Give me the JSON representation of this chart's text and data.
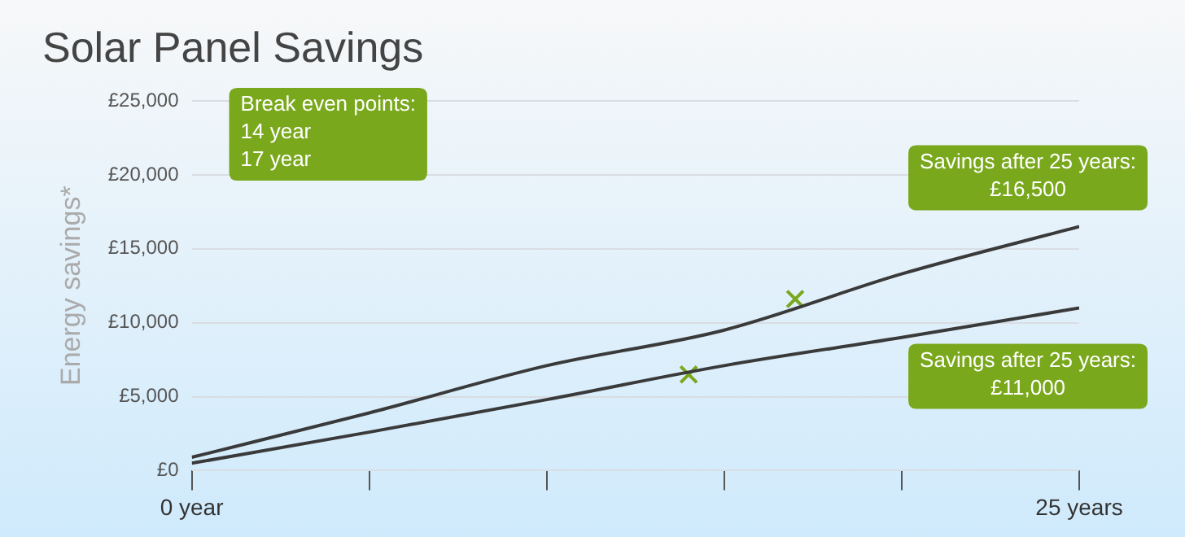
{
  "chart_data": {
    "type": "line",
    "title": "Solar Panel Savings",
    "ylabel": "Energy savings*",
    "x": [
      0,
      5,
      10,
      15,
      20,
      25
    ],
    "series": [
      {
        "color": "#3a3a3a",
        "values": [
          900,
          3900,
          7100,
          9500,
          13300,
          16500
        ],
        "marker": "none"
      },
      {
        "color": "#3a3a3a",
        "values": [
          500,
          2600,
          4800,
          7100,
          9000,
          11000
        ],
        "marker": "none"
      },
      {
        "type": "scatter",
        "color": "#7aa81c",
        "x": [
          14,
          17
        ],
        "values": [
          6500,
          11600
        ],
        "marker": "cross"
      }
    ],
    "xlim": [
      0,
      25
    ],
    "xticks": [
      {
        "value": 0,
        "label": "0 year"
      },
      {
        "value": 5,
        "label": null
      },
      {
        "value": 10,
        "label": null
      },
      {
        "value": 15,
        "label": null
      },
      {
        "value": 20,
        "label": null
      },
      {
        "value": 25,
        "label": "25 years"
      }
    ],
    "ylim": [
      0,
      25000
    ],
    "yticks": [
      {
        "value": 0,
        "label": "£0"
      },
      {
        "value": 5000,
        "label": "£5,000"
      },
      {
        "value": 10000,
        "label": "£10,000"
      },
      {
        "value": 15000,
        "label": "£15,000"
      },
      {
        "value": 20000,
        "label": "£20,000"
      },
      {
        "value": 25000,
        "label": "£25,000"
      }
    ],
    "grid": "y",
    "legend": false,
    "line_style": "solid",
    "annotations": [
      "Break even points:\n14 year\n17 year",
      {
        "text": "Savings after 25 years:\n£16,500",
        "x": 25,
        "y": 16500
      },
      {
        "text": "Savings after 25 years:\n£11,000",
        "x": 25,
        "y": 11000
      }
    ]
  }
}
